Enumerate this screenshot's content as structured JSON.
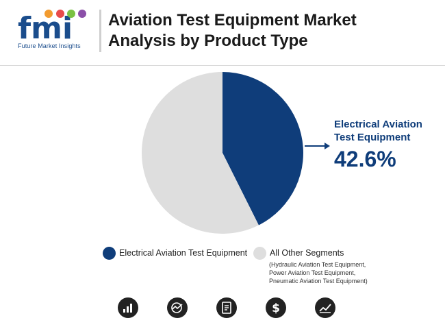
{
  "brand": {
    "logo_letters": "fmi",
    "logo_text": "Future Market Insights",
    "colors": {
      "blue": "#1b4d8c",
      "dot_orange": "#f29b2f",
      "dot_red": "#e84b4b",
      "dot_green": "#7ac143",
      "dot_purple": "#8b4fa8"
    }
  },
  "header": {
    "title_line1": "Aviation Test Equipment Market",
    "title_line2": "Analysis by Product Type"
  },
  "chart_data": {
    "type": "pie",
    "slices": [
      {
        "name": "Electrical Aviation Test Equipment",
        "value": 42.6,
        "color": "#0f3d7a"
      },
      {
        "name": "All Other Segments",
        "value": 57.4,
        "color": "#dedede"
      }
    ],
    "callout": {
      "label_line1": "Electrical Aviation",
      "label_line2": "Test Equipment",
      "value": "42.6%"
    },
    "legend": [
      {
        "label": "Electrical Aviation Test Equipment",
        "color": "#0f3d7a"
      },
      {
        "label": "All Other Segments",
        "color": "#dedede",
        "sub_lines": [
          "(Hydraulic Aviation Test Equipment,",
          "Power Aviation Test Equipment,",
          "Pneumatic Aviation Test Equipment)"
        ]
      }
    ]
  },
  "footer_icons": [
    "bar-chart-icon",
    "globe-trend-icon",
    "report-icon",
    "dollar-icon",
    "line-chart-icon"
  ]
}
